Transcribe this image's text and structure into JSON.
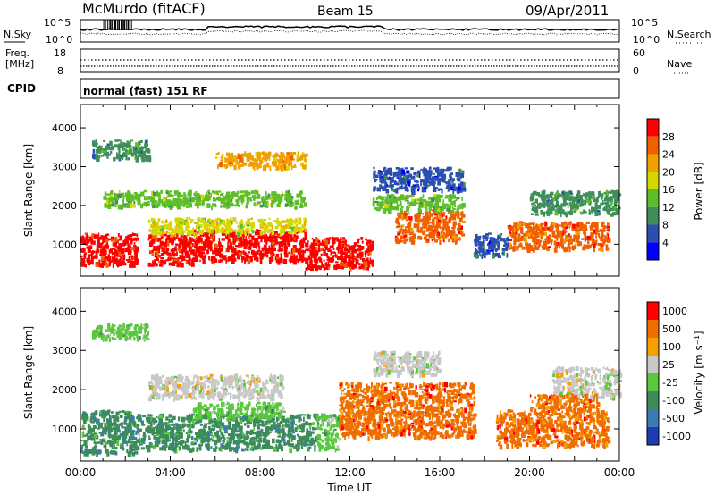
{
  "header": {
    "station": "McMurdo (fitACF)",
    "beam": "Beam 15",
    "date": "09/Apr/2011"
  },
  "status_panels": {
    "nsky_label": "N.Sky",
    "nsky_ticks": [
      "10^5",
      "10^0"
    ],
    "nsearch_label": "N.Search",
    "nsearch_ticks": [
      "10^5",
      "10^0"
    ],
    "freq_label_line1": "Freq.",
    "freq_label_line2": "[MHz]",
    "freq_ticks": [
      "18",
      "8"
    ],
    "nave_label": "Nave",
    "nave_ticks": [
      "60",
      "0"
    ],
    "cpid_label": "CPID",
    "cpid_text": "normal (fast) 151 RF"
  },
  "colors": {
    "power_scale": [
      "#0000ff",
      "#2a4fb0",
      "#3f8f5a",
      "#5cbf2a",
      "#d6d600",
      "#f0a000",
      "#f06000",
      "#ff0000"
    ],
    "velocity_scale": [
      "#1e3cb4",
      "#3c7ab4",
      "#3c8c5a",
      "#5ac83c",
      "#c8c8c8",
      "#f5a000",
      "#f06e00",
      "#ff0000"
    ]
  },
  "chart_data": [
    {
      "type": "heatmap",
      "panel": "power",
      "xlabel": "",
      "ylabel": "Slant Range [km]",
      "colorbar_label": "Power [dB]",
      "colorbar_ticks": [
        "28",
        "24",
        "20",
        "16",
        "12",
        "8",
        "4"
      ],
      "xlim": [
        0,
        24
      ],
      "ylim": [
        180,
        4600
      ],
      "yticks": [
        "4000",
        "3000",
        "2000",
        "1000"
      ],
      "regions": [
        {
          "x": [
            0,
            2.5
          ],
          "y": [
            500,
            1300
          ],
          "level": 7
        },
        {
          "x": [
            3.0,
            5.0
          ],
          "y": [
            500,
            1300
          ],
          "level": 7
        },
        {
          "x": [
            5.0,
            10.0
          ],
          "y": [
            600,
            1400
          ],
          "level": 7
        },
        {
          "x": [
            10.0,
            13.0
          ],
          "y": [
            400,
            1200
          ],
          "level": 7
        },
        {
          "x": [
            14.0,
            17.0
          ],
          "y": [
            1100,
            1900
          ],
          "level": 6
        },
        {
          "x": [
            19.0,
            23.5
          ],
          "y": [
            900,
            1600
          ],
          "level": 6
        },
        {
          "x": [
            3.0,
            10.0
          ],
          "y": [
            1300,
            1700
          ],
          "level": 4
        },
        {
          "x": [
            13.0,
            17.0
          ],
          "y": [
            1900,
            2300
          ],
          "level": 3
        },
        {
          "x": [
            1.0,
            10.0
          ],
          "y": [
            2000,
            2400
          ],
          "level": 3
        },
        {
          "x": [
            0.5,
            3.0
          ],
          "y": [
            3200,
            3700
          ],
          "level": 2
        },
        {
          "x": [
            13.0,
            17.0
          ],
          "y": [
            2400,
            3000
          ],
          "level": 1
        },
        {
          "x": [
            20.0,
            24.0
          ],
          "y": [
            1800,
            2400
          ],
          "level": 2
        },
        {
          "x": [
            6.0,
            10.0
          ],
          "y": [
            3000,
            3400
          ],
          "level": 5
        },
        {
          "x": [
            17.5,
            19.0
          ],
          "y": [
            700,
            1300
          ],
          "level": 1
        }
      ]
    },
    {
      "type": "heatmap",
      "panel": "velocity",
      "xlabel": "Time UT",
      "ylabel": "Slant Range [km]",
      "colorbar_label": "Velocity [m s⁻¹]",
      "colorbar_ticks": [
        "1000",
        "500",
        "100",
        "25",
        "-25",
        "-100",
        "-500",
        "-1000"
      ],
      "xlim": [
        0,
        24
      ],
      "ylim": [
        180,
        4600
      ],
      "yticks": [
        "4000",
        "3000",
        "2000",
        "1000"
      ],
      "xticks": [
        "00:00",
        "04:00",
        "08:00",
        "12:00",
        "16:00",
        "20:00",
        "00:00"
      ],
      "regions": [
        {
          "x": [
            0,
            2.5
          ],
          "y": [
            400,
            1500
          ],
          "level": 2
        },
        {
          "x": [
            2.5,
            10.5
          ],
          "y": [
            500,
            1400
          ],
          "level": 2
        },
        {
          "x": [
            10.5,
            11.5
          ],
          "y": [
            500,
            1400
          ],
          "level": 3
        },
        {
          "x": [
            11.5,
            17.5
          ],
          "y": [
            800,
            2200
          ],
          "level": 6
        },
        {
          "x": [
            18.5,
            23.5
          ],
          "y": [
            600,
            1500
          ],
          "level": 6
        },
        {
          "x": [
            3.0,
            9.0
          ],
          "y": [
            1800,
            2400
          ],
          "level": 4
        },
        {
          "x": [
            13.0,
            16.0
          ],
          "y": [
            2400,
            3000
          ],
          "level": 4
        },
        {
          "x": [
            21.0,
            24.0
          ],
          "y": [
            1800,
            2600
          ],
          "level": 4
        },
        {
          "x": [
            20.0,
            23.0
          ],
          "y": [
            1500,
            1900
          ],
          "level": 6
        },
        {
          "x": [
            0.5,
            3.0
          ],
          "y": [
            3300,
            3700
          ],
          "level": 3
        },
        {
          "x": [
            5.0,
            9.0
          ],
          "y": [
            1300,
            1700
          ],
          "level": 3
        }
      ]
    }
  ]
}
